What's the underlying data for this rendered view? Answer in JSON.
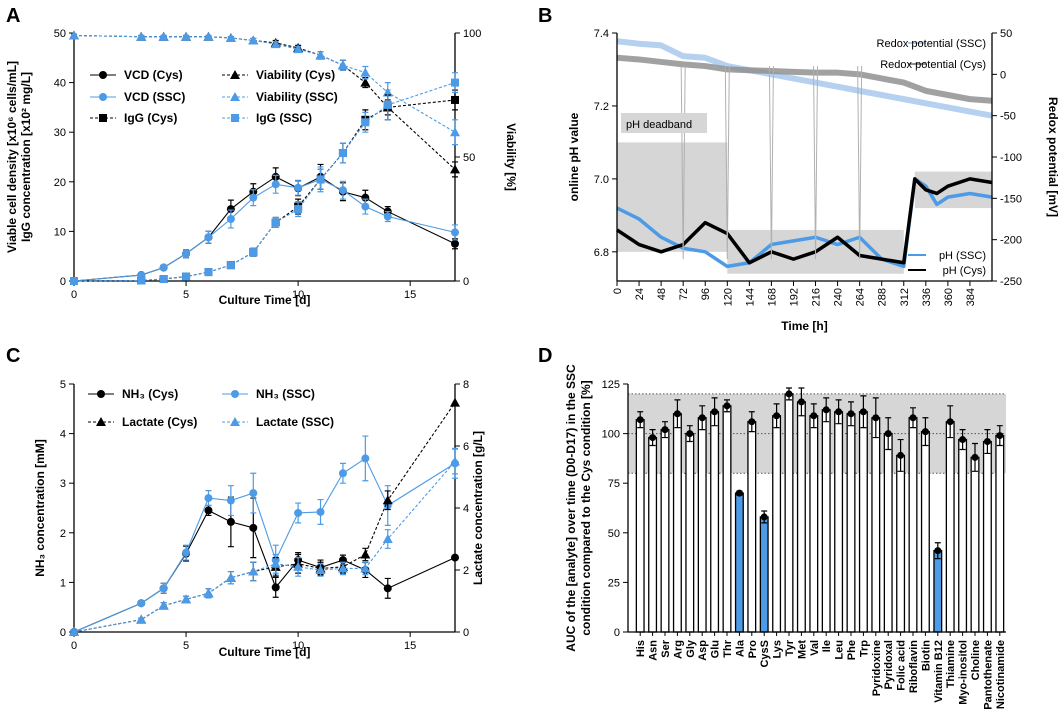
{
  "colors": {
    "cys": "#000000",
    "ssc": "#4d9be6",
    "ssc_light": "#a9c9ec",
    "cys_grey": "#909090",
    "band": "#d6d6d6"
  },
  "panels": {
    "a": "A",
    "b": "B",
    "c": "C",
    "d": "D"
  },
  "chart_data": [
    {
      "id": "A",
      "type": "line",
      "xlabel": "Culture Time [d]",
      "ylabel_left_line1": "Viable cell density [x10⁶ cells/mL]",
      "ylabel_left_line2": "IgG concentration [x10² mg/L]",
      "ylabel_right": "Viability [%]",
      "xlim": [
        0,
        17
      ],
      "ylim_left": [
        0,
        50
      ],
      "ylim_right": [
        0,
        100
      ],
      "xticks": [
        "0",
        "5",
        "10",
        "15"
      ],
      "yticks_left": [
        "0",
        "10",
        "20",
        "30",
        "40",
        "50"
      ],
      "yticks_right": [
        "0",
        "50",
        "100"
      ],
      "series": [
        {
          "name": "VCD (Cys)",
          "axis": "left",
          "marker": "circle",
          "color": "cys",
          "dash": false,
          "x": [
            0,
            3,
            4,
            5,
            6,
            7,
            8,
            9,
            10,
            11,
            12,
            13,
            14,
            17
          ],
          "y": [
            0,
            1.2,
            2.7,
            5.5,
            8.8,
            14.5,
            18,
            21,
            18.7,
            21,
            18,
            16.8,
            14,
            7.5
          ],
          "err": [
            0,
            0.3,
            0.4,
            0.8,
            1.2,
            1.8,
            1.6,
            1.8,
            1.5,
            2.5,
            1.8,
            1.5,
            1.0,
            1.0
          ]
        },
        {
          "name": "VCD (SSC)",
          "axis": "left",
          "marker": "circle",
          "color": "ssc",
          "dash": false,
          "x": [
            0,
            3,
            4,
            5,
            6,
            7,
            8,
            9,
            10,
            11,
            12,
            13,
            14,
            17
          ],
          "y": [
            0,
            1.2,
            2.7,
            5.5,
            8.8,
            12.5,
            16.8,
            19.5,
            18.8,
            20.5,
            18.3,
            15,
            13,
            9.8
          ],
          "err": [
            0,
            0.3,
            0.4,
            0.8,
            1.2,
            1.8,
            1.6,
            1.8,
            1.5,
            2.5,
            1.8,
            1.5,
            1.0,
            1.5
          ]
        },
        {
          "name": "Viability (Cys)",
          "axis": "right",
          "marker": "triangle",
          "color": "cys",
          "dash": true,
          "x": [
            0,
            3,
            4,
            5,
            6,
            7,
            8,
            9,
            10,
            11,
            12,
            13,
            14,
            17
          ],
          "y": [
            99,
            98.5,
            98.5,
            98.5,
            98.5,
            98,
            97,
            96,
            94,
            91,
            87,
            80,
            70,
            45
          ],
          "err": [
            0.5,
            0.5,
            0.5,
            0.5,
            0.5,
            0.5,
            0.8,
            1,
            1,
            1.5,
            2,
            2,
            3,
            3
          ]
        },
        {
          "name": "Viability (SSC)",
          "axis": "right",
          "marker": "triangle",
          "color": "ssc",
          "dash": true,
          "x": [
            0,
            3,
            4,
            5,
            6,
            7,
            8,
            9,
            10,
            11,
            12,
            13,
            14,
            17
          ],
          "y": [
            99,
            98.5,
            98.5,
            98.5,
            98.5,
            98,
            97,
            95.5,
            93.5,
            91,
            87,
            84,
            76,
            60
          ],
          "err": [
            0.5,
            0.5,
            0.5,
            0.5,
            0.5,
            0.5,
            0.8,
            1,
            1,
            1.5,
            2,
            2.5,
            4,
            5
          ]
        },
        {
          "name": "IgG (Cys)",
          "axis": "left",
          "marker": "square",
          "color": "cys",
          "dash": true,
          "x": [
            0,
            3,
            4,
            5,
            6,
            7,
            8,
            9,
            10,
            11,
            12,
            13,
            14,
            17
          ],
          "y": [
            0,
            0.1,
            0.4,
            0.9,
            1.8,
            3.2,
            5.8,
            11.8,
            15,
            20.5,
            25.8,
            32.5,
            35,
            36.5
          ],
          "err": [
            0,
            0,
            0.1,
            0.2,
            0.3,
            0.5,
            0.8,
            1,
            1.5,
            2,
            2,
            2,
            2.5,
            2
          ]
        },
        {
          "name": "IgG (SSC)",
          "axis": "left",
          "marker": "square",
          "color": "ssc",
          "dash": true,
          "x": [
            0,
            3,
            4,
            5,
            6,
            7,
            8,
            9,
            10,
            11,
            12,
            13,
            14,
            17
          ],
          "y": [
            0,
            0.1,
            0.4,
            0.9,
            1.8,
            3.2,
            5.8,
            11.8,
            14.5,
            20.5,
            25.8,
            32,
            35.5,
            40
          ],
          "err": [
            0,
            0,
            0.1,
            0.2,
            0.3,
            0.5,
            0.8,
            1,
            1.5,
            2,
            2,
            2,
            3,
            2
          ]
        }
      ]
    },
    {
      "id": "B",
      "type": "line",
      "xlabel": "Time [h]",
      "ylabel_left": "online pH value",
      "ylabel_right": "Redox potential [mV]",
      "xlim": [
        0,
        408
      ],
      "ylim_left": [
        6.72,
        7.4
      ],
      "ylim_right": [
        -250,
        50
      ],
      "xticks": [
        "0",
        "24",
        "48",
        "72",
        "96",
        "120",
        "144",
        "168",
        "192",
        "216",
        "240",
        "264",
        "288",
        "312",
        "336",
        "360",
        "384"
      ],
      "yticks_left": [
        "6.8",
        "7.0",
        "7.2",
        "7.4"
      ],
      "yticks_right": [
        "-250",
        "-200",
        "-150",
        "-100",
        "-50",
        "0",
        "50"
      ],
      "annotation": "pH deadband",
      "deadband": [
        {
          "x0": 0,
          "x1": 120,
          "lo": 6.8,
          "hi": 7.1
        },
        {
          "x0": 120,
          "x1": 312,
          "lo": 6.74,
          "hi": 6.86
        },
        {
          "x0": 324,
          "x1": 408,
          "lo": 6.92,
          "hi": 7.02
        }
      ],
      "legend": [
        "Redox potential (SSC)",
        "Redox potential (Cys)",
        "pH (SSC)",
        "pH (Cys)"
      ],
      "feeds_h": [
        72,
        120,
        168,
        216,
        264
      ],
      "series": [
        {
          "name": "Redox potential (SSC)",
          "axis": "right",
          "color": "ssc_light",
          "x": [
            0,
            24,
            48,
            72,
            96,
            120,
            144,
            168,
            192,
            216,
            240,
            264,
            288,
            312,
            336,
            360,
            384,
            408
          ],
          "y": [
            40,
            37,
            35,
            22,
            20,
            10,
            5,
            0,
            -5,
            -10,
            -15,
            -20,
            -25,
            -30,
            -35,
            -40,
            -45,
            -50
          ]
        },
        {
          "name": "Redox potential (Cys)",
          "axis": "right",
          "color": "cys_grey",
          "x": [
            0,
            24,
            48,
            72,
            96,
            120,
            144,
            168,
            192,
            216,
            240,
            264,
            288,
            312,
            336,
            360,
            384,
            408
          ],
          "y": [
            20,
            18,
            15,
            12,
            10,
            6,
            5,
            4,
            3,
            2,
            2,
            0,
            -5,
            -10,
            -20,
            -25,
            -30,
            -32
          ]
        },
        {
          "name": "pH (SSC)",
          "axis": "left",
          "color": "ssc",
          "x": [
            0,
            24,
            48,
            72,
            96,
            120,
            144,
            168,
            192,
            216,
            240,
            264,
            288,
            312,
            324,
            336,
            348,
            360,
            384,
            408
          ],
          "y": [
            6.92,
            6.89,
            6.84,
            6.81,
            6.8,
            6.76,
            6.77,
            6.82,
            6.83,
            6.84,
            6.82,
            6.84,
            6.78,
            6.76,
            7.0,
            6.98,
            6.93,
            6.95,
            6.96,
            6.95
          ]
        },
        {
          "name": "pH (Cys)",
          "axis": "left",
          "color": "cys",
          "x": [
            0,
            24,
            48,
            72,
            96,
            120,
            144,
            168,
            192,
            216,
            240,
            264,
            288,
            312,
            324,
            336,
            348,
            360,
            384,
            408
          ],
          "y": [
            6.86,
            6.82,
            6.8,
            6.82,
            6.88,
            6.85,
            6.77,
            6.8,
            6.78,
            6.8,
            6.84,
            6.79,
            6.78,
            6.77,
            7.0,
            6.97,
            6.96,
            6.98,
            7.0,
            6.99
          ]
        }
      ]
    },
    {
      "id": "C",
      "type": "line",
      "xlabel": "Culture Time [d]",
      "ylabel_left": "NH₃ concentration [mM]",
      "ylabel_right": "Lactate concentration [g/L]",
      "xlim": [
        0,
        17
      ],
      "ylim_left": [
        0,
        5
      ],
      "ylim_right": [
        0,
        8
      ],
      "xticks": [
        "0",
        "5",
        "10",
        "15"
      ],
      "yticks_left": [
        "0",
        "1",
        "2",
        "3",
        "4",
        "5"
      ],
      "yticks_right": [
        "0",
        "2",
        "4",
        "6",
        "8"
      ],
      "series": [
        {
          "name": "NH₃ (Cys)",
          "axis": "left",
          "marker": "circle",
          "color": "cys",
          "dash": false,
          "x": [
            0,
            3,
            4,
            5,
            6,
            7,
            8,
            9,
            10,
            11,
            12,
            13,
            14,
            17
          ],
          "y": [
            0,
            0.58,
            0.88,
            1.58,
            2.45,
            2.22,
            2.1,
            0.9,
            1.45,
            1.3,
            1.45,
            1.25,
            0.88,
            1.5
          ],
          "err": [
            0,
            0.03,
            0.1,
            0.15,
            0.1,
            0.5,
            0.6,
            0.2,
            0.15,
            0.15,
            0.1,
            0.15,
            0.2,
            0
          ]
        },
        {
          "name": "NH₃ (SSC)",
          "axis": "left",
          "marker": "circle",
          "color": "ssc",
          "dash": false,
          "x": [
            0,
            3,
            4,
            5,
            6,
            7,
            8,
            9,
            10,
            11,
            12,
            13,
            14,
            17
          ],
          "y": [
            0,
            0.58,
            0.88,
            1.6,
            2.7,
            2.65,
            2.8,
            1.45,
            2.4,
            2.42,
            3.2,
            3.5,
            2.55,
            3.4
          ],
          "err": [
            0,
            0.03,
            0.1,
            0.15,
            0.15,
            0.3,
            0.4,
            0.3,
            0.2,
            0.25,
            0.2,
            0.45,
            0.4,
            0.3
          ]
        },
        {
          "name": "Lactate (Cys)",
          "axis": "right",
          "marker": "triangle",
          "color": "cys",
          "dash": true,
          "x": [
            0,
            3,
            4,
            5,
            6,
            7,
            8,
            9,
            10,
            11,
            12,
            13,
            14,
            17
          ],
          "y": [
            0,
            0.4,
            0.85,
            1.05,
            1.25,
            1.75,
            1.95,
            2.1,
            2.2,
            2.05,
            2.1,
            2.5,
            4.25,
            7.4
          ],
          "err": [
            0,
            0.05,
            0.1,
            0.1,
            0.15,
            0.2,
            0.3,
            0.3,
            0.3,
            0.2,
            0.2,
            0.2,
            0.3,
            0
          ]
        },
        {
          "name": "Lactate (SSC)",
          "axis": "right",
          "marker": "triangle",
          "color": "ssc",
          "dash": true,
          "x": [
            0,
            3,
            4,
            5,
            6,
            7,
            8,
            9,
            10,
            11,
            12,
            13,
            14,
            17
          ],
          "y": [
            0,
            0.4,
            0.85,
            1.05,
            1.25,
            1.75,
            1.95,
            2.2,
            2.1,
            2.0,
            2.05,
            2.05,
            3.0,
            5.5
          ],
          "err": [
            0,
            0.05,
            0.1,
            0.1,
            0.15,
            0.2,
            0.3,
            0.3,
            0.3,
            0.2,
            0.2,
            0.2,
            0.3,
            0.4
          ]
        }
      ]
    },
    {
      "id": "D",
      "type": "bar",
      "ylabel_line1": "AUC of the [analyte] over time (D0-D17) in the SSC",
      "ylabel_line2": "condition compared to the Cys condition [%]",
      "ylim": [
        0,
        125
      ],
      "yticks": [
        "0",
        "25",
        "50",
        "75",
        "100",
        "125"
      ],
      "reference_band": [
        80,
        120
      ],
      "reference_line": 100,
      "categories": [
        "His",
        "Asn",
        "Ser",
        "Arg",
        "Gly",
        "Asp",
        "Glu",
        "Thr",
        "Ala",
        "Pro",
        "CysS",
        "Lys",
        "Tyr",
        "Met",
        "Val",
        "Ile",
        "Leu",
        "Phe",
        "Trp",
        "Pyridoxine",
        "Pyridoxal",
        "Folic acid",
        "Riboflavin",
        "Biotin",
        "Vitamin B12",
        "Thiamine",
        "Myo-inositol",
        "Choline",
        "Pantothenate",
        "Nicotinamide"
      ],
      "values": [
        107,
        98,
        102,
        110,
        100,
        108,
        111,
        114,
        70,
        106,
        58,
        109,
        120,
        116,
        109,
        112,
        111,
        110,
        111,
        108,
        100,
        89,
        108,
        101,
        41,
        106,
        97,
        88,
        96,
        99
      ],
      "errors": [
        4,
        4,
        4,
        7,
        4,
        6,
        7,
        3,
        1,
        5,
        3,
        6,
        3,
        7,
        6,
        6,
        6,
        6,
        8,
        10,
        8,
        8,
        5,
        7,
        4,
        8,
        5,
        7,
        6,
        5
      ],
      "highlighted": [
        "Ala",
        "CysS",
        "Vitamin B12"
      ]
    }
  ]
}
